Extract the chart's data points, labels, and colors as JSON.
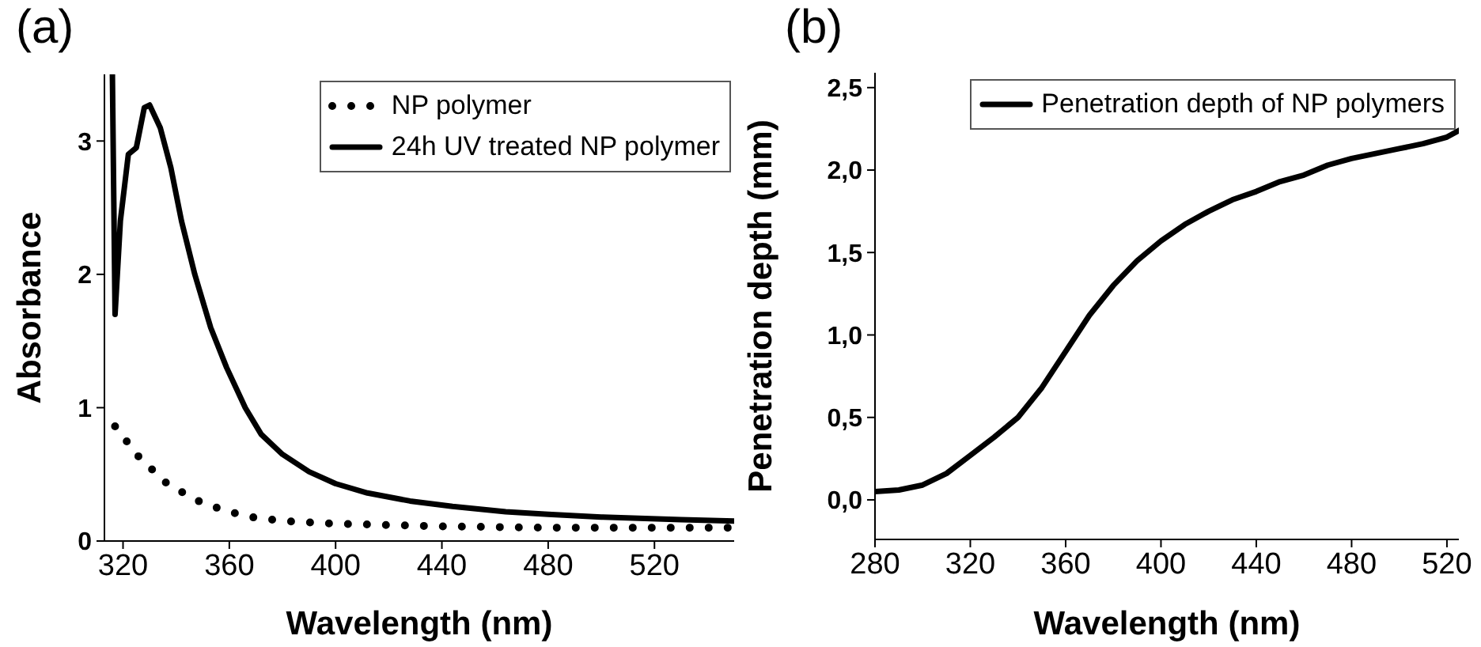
{
  "chart_data": [
    {
      "type": "line",
      "title": "(a)",
      "xlabel": "Wavelength (nm)",
      "ylabel": "Absorbance",
      "xlim": [
        313,
        550
      ],
      "ylim": [
        0,
        3.5
      ],
      "xticks": [
        320,
        360,
        400,
        440,
        480,
        520
      ],
      "yticks": [
        0,
        1,
        2,
        3
      ],
      "grid": false,
      "legend": "top right",
      "marker": "none",
      "series": [
        {
          "name": "NP polymer",
          "color": "#000000",
          "line_style": "dotted",
          "x": [
            317,
            326,
            336,
            347,
            358,
            368,
            380,
            400,
            420,
            440,
            480,
            520,
            550
          ],
          "values": [
            0.86,
            0.63,
            0.44,
            0.31,
            0.23,
            0.18,
            0.15,
            0.13,
            0.12,
            0.11,
            0.1,
            0.1,
            0.1
          ]
        },
        {
          "name": "24h UV treated NP polymer",
          "color": "#000000",
          "line_style": "solid",
          "x": [
            316,
            317,
            319,
            322,
            325,
            328,
            330,
            334,
            338,
            342,
            347,
            353,
            359,
            366,
            372,
            380,
            390,
            400,
            412,
            428,
            444,
            464,
            480,
            500,
            530,
            550
          ],
          "values": [
            3.5,
            1.7,
            2.4,
            2.9,
            2.95,
            3.25,
            3.27,
            3.1,
            2.8,
            2.4,
            2.0,
            1.6,
            1.3,
            1.0,
            0.8,
            0.65,
            0.52,
            0.43,
            0.36,
            0.3,
            0.26,
            0.22,
            0.2,
            0.18,
            0.16,
            0.15
          ]
        }
      ]
    },
    {
      "type": "line",
      "title": "(b)",
      "xlabel": "Wavelength (nm)",
      "ylabel": "Penetration depth (mm)",
      "xlim": [
        280,
        525
      ],
      "ylim": [
        -0.24,
        2.59
      ],
      "xticks": [
        280,
        320,
        360,
        400,
        440,
        480,
        520
      ],
      "yticks": [
        {
          "value": 0,
          "label": "0,0"
        },
        {
          "value": 0.5,
          "label": "0,5"
        },
        {
          "value": 1,
          "label": "1,0"
        },
        {
          "value": 1.5,
          "label": "1,5"
        },
        {
          "value": 2,
          "label": "2,0"
        },
        {
          "value": 2.5,
          "label": "2,5"
        }
      ],
      "grid": false,
      "legend": "top right",
      "marker": "none",
      "series": [
        {
          "name": "Penetration depth of NP polymers",
          "color": "#000000",
          "line_style": "solid",
          "x": [
            280,
            290,
            300,
            310,
            320,
            330,
            340,
            350,
            360,
            370,
            380,
            390,
            400,
            410,
            420,
            430,
            440,
            450,
            460,
            470,
            480,
            490,
            500,
            510,
            520,
            525
          ],
          "values": [
            0.05,
            0.06,
            0.09,
            0.16,
            0.27,
            0.38,
            0.5,
            0.68,
            0.9,
            1.12,
            1.3,
            1.45,
            1.57,
            1.67,
            1.75,
            1.82,
            1.87,
            1.93,
            1.97,
            2.03,
            2.07,
            2.1,
            2.13,
            2.16,
            2.2,
            2.24
          ]
        }
      ]
    }
  ]
}
